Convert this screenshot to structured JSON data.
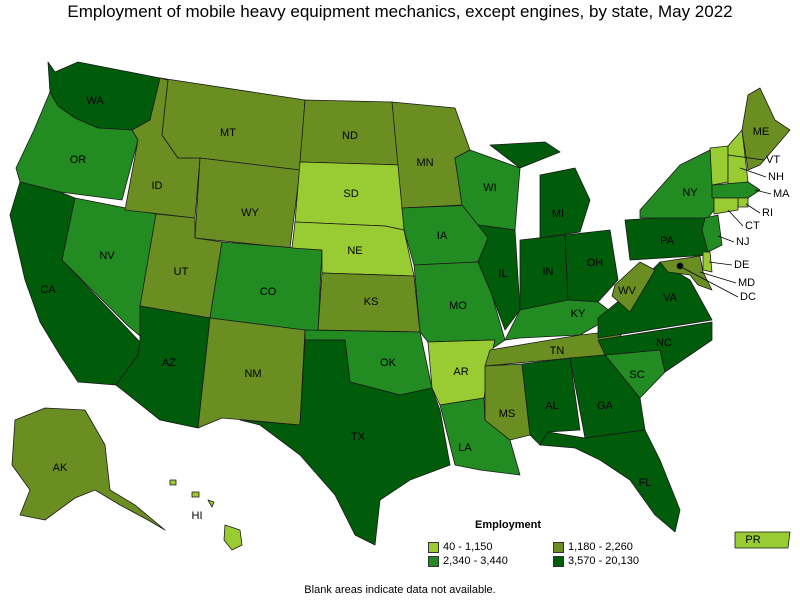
{
  "title": "Employment of mobile heavy equipment mechanics, except engines, by state, May 2022",
  "footnote": "Blank areas indicate data not available.",
  "legend": {
    "title": "Employment",
    "items": [
      {
        "range": "40 - 1,150",
        "color": "#99cc33"
      },
      {
        "range": "1,180 - 2,260",
        "color": "#6b8e23"
      },
      {
        "range": "2,340 - 3,440",
        "color": "#228b22"
      },
      {
        "range": "3,570 - 20,130",
        "color": "#005c0a"
      }
    ]
  },
  "chart_data": {
    "type": "choropleth",
    "metric": "Employment",
    "bins": [
      "40 - 1,150",
      "1,180 - 2,260",
      "2,340 - 3,440",
      "3,570 - 20,130"
    ],
    "states": [
      {
        "abbr": "WA",
        "bin": 3
      },
      {
        "abbr": "OR",
        "bin": 2
      },
      {
        "abbr": "CA",
        "bin": 3
      },
      {
        "abbr": "NV",
        "bin": 2
      },
      {
        "abbr": "ID",
        "bin": 1
      },
      {
        "abbr": "MT",
        "bin": 1
      },
      {
        "abbr": "WY",
        "bin": 1
      },
      {
        "abbr": "UT",
        "bin": 1
      },
      {
        "abbr": "AZ",
        "bin": 3
      },
      {
        "abbr": "CO",
        "bin": 2
      },
      {
        "abbr": "NM",
        "bin": 1
      },
      {
        "abbr": "ND",
        "bin": 1
      },
      {
        "abbr": "SD",
        "bin": 0
      },
      {
        "abbr": "NE",
        "bin": 0
      },
      {
        "abbr": "KS",
        "bin": 1
      },
      {
        "abbr": "OK",
        "bin": 2
      },
      {
        "abbr": "TX",
        "bin": 3
      },
      {
        "abbr": "MN",
        "bin": 1
      },
      {
        "abbr": "IA",
        "bin": 2
      },
      {
        "abbr": "MO",
        "bin": 2
      },
      {
        "abbr": "AR",
        "bin": 0
      },
      {
        "abbr": "LA",
        "bin": 2
      },
      {
        "abbr": "WI",
        "bin": 2
      },
      {
        "abbr": "IL",
        "bin": 3
      },
      {
        "abbr": "MI",
        "bin": 3
      },
      {
        "abbr": "IN",
        "bin": 3
      },
      {
        "abbr": "OH",
        "bin": 3
      },
      {
        "abbr": "KY",
        "bin": 2
      },
      {
        "abbr": "TN",
        "bin": 1
      },
      {
        "abbr": "MS",
        "bin": 1
      },
      {
        "abbr": "AL",
        "bin": 3
      },
      {
        "abbr": "GA",
        "bin": 3
      },
      {
        "abbr": "FL",
        "bin": 3
      },
      {
        "abbr": "SC",
        "bin": 2
      },
      {
        "abbr": "NC",
        "bin": 3
      },
      {
        "abbr": "VA",
        "bin": 3
      },
      {
        "abbr": "WV",
        "bin": 1
      },
      {
        "abbr": "PA",
        "bin": 3
      },
      {
        "abbr": "NY",
        "bin": 2
      },
      {
        "abbr": "VT",
        "bin": 0
      },
      {
        "abbr": "NH",
        "bin": 0
      },
      {
        "abbr": "ME",
        "bin": 1
      },
      {
        "abbr": "MA",
        "bin": 2
      },
      {
        "abbr": "RI",
        "bin": 0
      },
      {
        "abbr": "CT",
        "bin": 0
      },
      {
        "abbr": "NJ",
        "bin": 2
      },
      {
        "abbr": "DE",
        "bin": 0
      },
      {
        "abbr": "MD",
        "bin": 1
      },
      {
        "abbr": "DC",
        "bin": 3
      },
      {
        "abbr": "AK",
        "bin": 1
      },
      {
        "abbr": "HI",
        "bin": 0
      },
      {
        "abbr": "PR",
        "bin": 0
      }
    ]
  }
}
